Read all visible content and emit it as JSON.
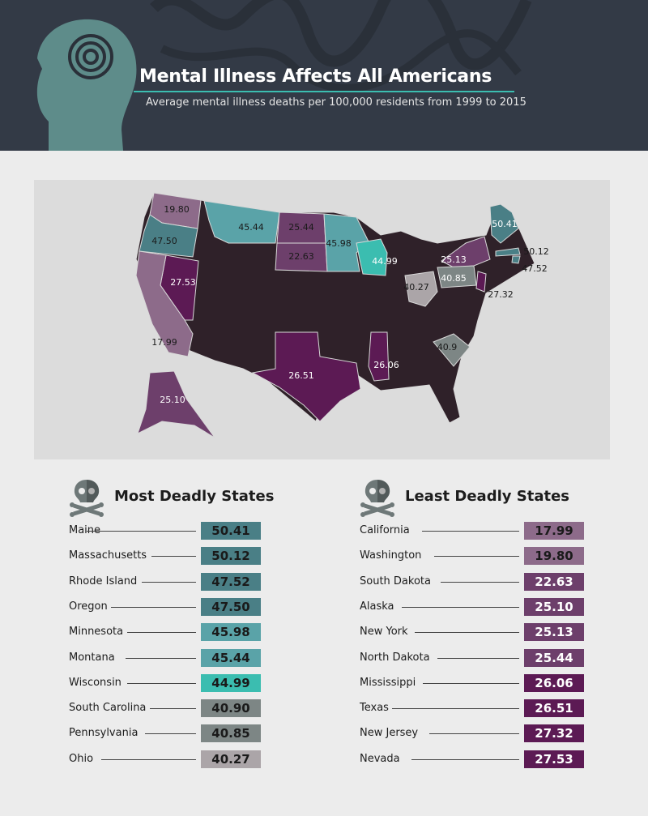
{
  "header": {
    "title": "Mental Illness Affects All Americans",
    "subtitle": "Average mental illness deaths per 100,000 residents from 1999 to 2015"
  },
  "colors": {
    "base": "#2f2129",
    "teal_dark": "#4a7f86",
    "teal": "#5aa3a8",
    "teal_bright": "#3bbdb0",
    "gray": "#7d8685",
    "gray_light": "#aba5a8",
    "mauve_light": "#8d6b8a",
    "mauve": "#6d3f6b",
    "plum": "#5c1a54"
  },
  "map_labels": [
    {
      "state": "Washington",
      "value": "19.80"
    },
    {
      "state": "Oregon",
      "value": "47.50"
    },
    {
      "state": "Montana",
      "value": "45.44"
    },
    {
      "state": "North Dakota",
      "value": "25.44"
    },
    {
      "state": "South Dakota",
      "value": "22.63"
    },
    {
      "state": "Minnesota",
      "value": "45.98"
    },
    {
      "state": "Wisconsin",
      "value": "44.99"
    },
    {
      "state": "Maine",
      "value": "50.41"
    },
    {
      "state": "Massachusetts",
      "value": "50.12"
    },
    {
      "state": "Rhode Island",
      "value": "47.52"
    },
    {
      "state": "New York",
      "value": "25.13"
    },
    {
      "state": "Pennsylvania",
      "value": "40.85"
    },
    {
      "state": "Ohio",
      "value": "40.27"
    },
    {
      "state": "New Jersey",
      "value": "27.32"
    },
    {
      "state": "Nevada",
      "value": "27.53"
    },
    {
      "state": "California",
      "value": "17.99"
    },
    {
      "state": "South Carolina",
      "value": "40.9"
    },
    {
      "state": "Texas",
      "value": "26.51"
    },
    {
      "state": "Mississippi",
      "value": "26.06"
    },
    {
      "state": "Alaska",
      "value": "25.10"
    }
  ],
  "most": {
    "title": "Most Deadly States",
    "rows": [
      {
        "name": "Maine",
        "value": "50.41",
        "tier": "teal_dark"
      },
      {
        "name": "Massachusetts",
        "value": "50.12",
        "tier": "teal_dark"
      },
      {
        "name": "Rhode Island",
        "value": "47.52",
        "tier": "teal_dark"
      },
      {
        "name": "Oregon",
        "value": "47.50",
        "tier": "teal_dark"
      },
      {
        "name": "Minnesota",
        "value": "45.98",
        "tier": "teal"
      },
      {
        "name": "Montana",
        "value": "45.44",
        "tier": "teal"
      },
      {
        "name": "Wisconsin",
        "value": "44.99",
        "tier": "teal_bright"
      },
      {
        "name": "South Carolina",
        "value": "40.90",
        "tier": "gray"
      },
      {
        "name": "Pennsylvania",
        "value": "40.85",
        "tier": "gray"
      },
      {
        "name": "Ohio",
        "value": "40.27",
        "tier": "gray_light"
      }
    ]
  },
  "least": {
    "title": "Least Deadly States",
    "rows": [
      {
        "name": "California",
        "value": "17.99",
        "tier": "mauve_light"
      },
      {
        "name": "Washington",
        "value": "19.80",
        "tier": "mauve_light"
      },
      {
        "name": "South Dakota",
        "value": "22.63",
        "tier": "mauve"
      },
      {
        "name": "Alaska",
        "value": "25.10",
        "tier": "mauve"
      },
      {
        "name": "New York",
        "value": "25.13",
        "tier": "mauve"
      },
      {
        "name": "North Dakota",
        "value": "25.44",
        "tier": "mauve"
      },
      {
        "name": "Mississippi",
        "value": "26.06",
        "tier": "plum"
      },
      {
        "name": "Texas",
        "value": "26.51",
        "tier": "plum"
      },
      {
        "name": "New Jersey",
        "value": "27.32",
        "tier": "plum"
      },
      {
        "name": "Nevada",
        "value": "27.53",
        "tier": "plum"
      }
    ]
  }
}
